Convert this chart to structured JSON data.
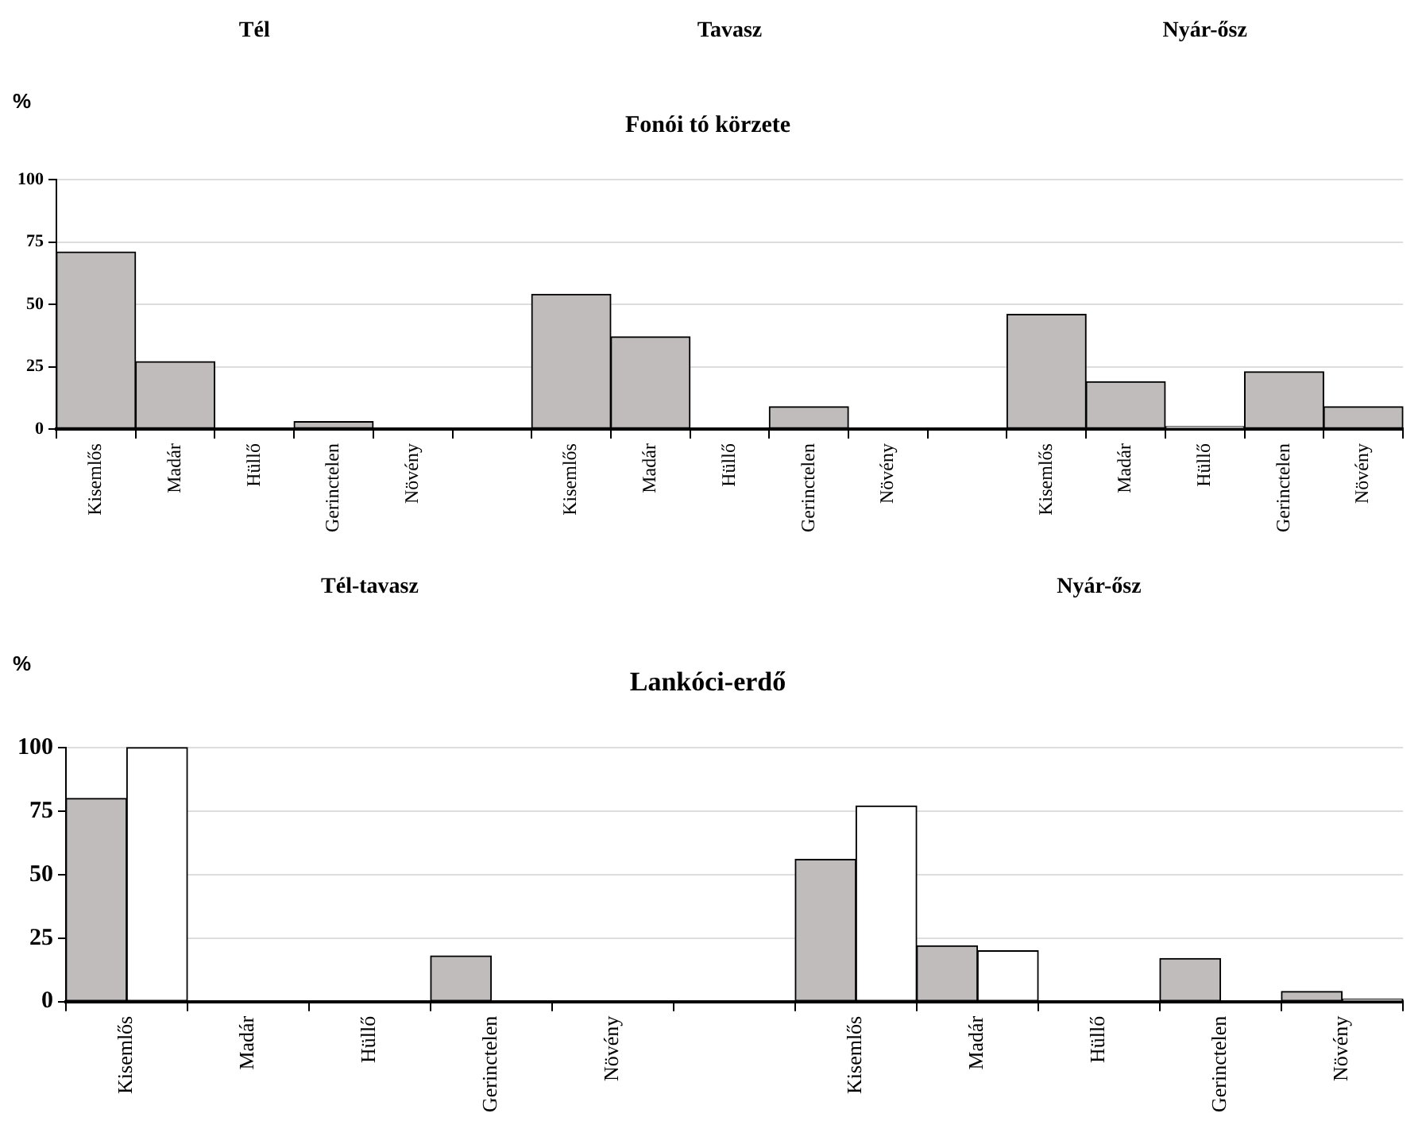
{
  "chart_data": [
    {
      "type": "bar",
      "title": "Fonói tó körzete",
      "ylabel": "%",
      "annotations": [
        "Tél",
        "Tavasz",
        "Nyár-ősz"
      ],
      "categories": [
        "Kisemlős",
        "Madár",
        "Hüllő",
        "Gerinctelen",
        "Növény",
        null,
        "Kisemlős",
        "Madár",
        "Hüllő",
        "Gerinctelen",
        "Növény",
        null,
        "Kisemlős",
        "Madár",
        "Hüllő",
        "Gerinctelen",
        "Növény"
      ],
      "series": [
        {
          "color": "#c0bcbc",
          "values": [
            71,
            27,
            0,
            3,
            0,
            null,
            54,
            37,
            0,
            9,
            0,
            null,
            46,
            19,
            1,
            23,
            9
          ]
        }
      ],
      "ylim": [
        0,
        100
      ],
      "yticks": [
        0,
        25,
        50,
        75,
        100
      ],
      "grid": "y",
      "legend": false
    },
    {
      "type": "bar",
      "title": "Lankóci-erdő",
      "ylabel": "%",
      "annotations": [
        "Tél-tavasz",
        "Nyár-ősz"
      ],
      "categories": [
        "Kisemlős",
        "Madár",
        "Hüllő",
        "Gerinctelen",
        "Növény",
        null,
        "Kisemlős",
        "Madár",
        "Hüllő",
        "Gerinctelen",
        "Növény"
      ],
      "series": [
        {
          "color": "#c0bcbc",
          "values": [
            80,
            0,
            0,
            18,
            0,
            null,
            56,
            22,
            0,
            17,
            4
          ]
        },
        {
          "color": "#ffffff",
          "values": [
            100,
            0,
            0,
            0,
            0,
            null,
            77,
            20,
            0,
            0,
            1
          ]
        }
      ],
      "ylim": [
        0,
        100
      ],
      "yticks": [
        0,
        25,
        50,
        75,
        100
      ],
      "grid": "y",
      "legend": false
    }
  ]
}
